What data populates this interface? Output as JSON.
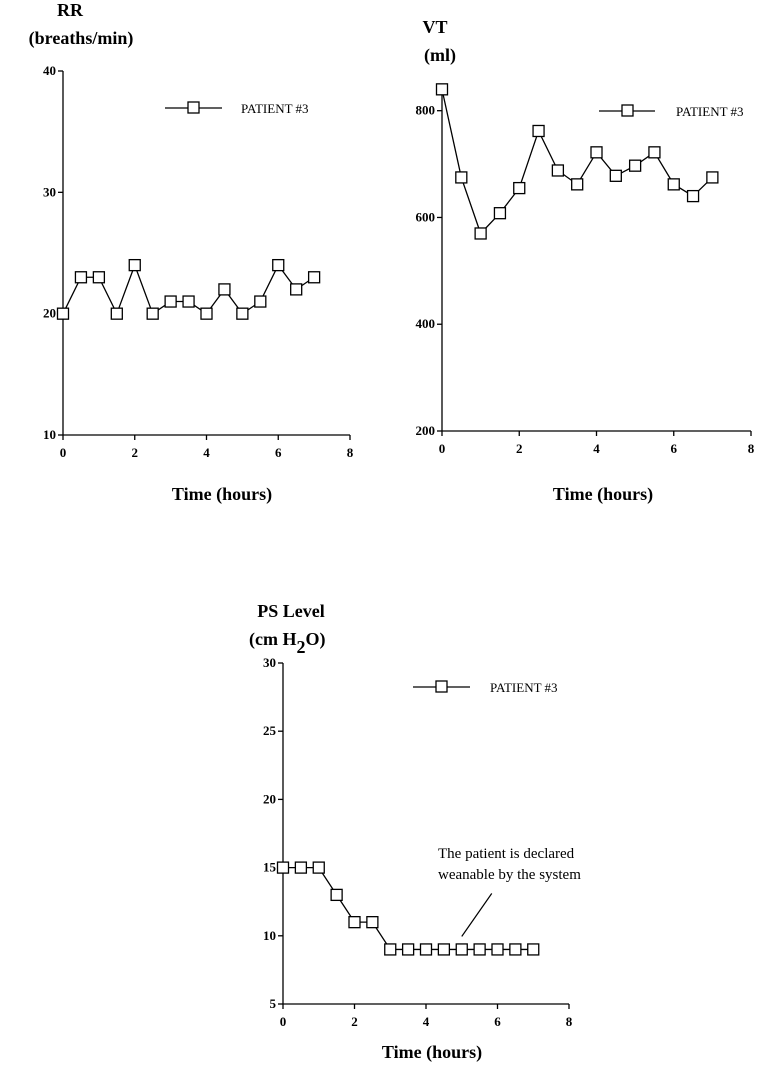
{
  "chart_data": [
    {
      "type": "line",
      "ylabel_line1": "RR",
      "ylabel_line2": "(breaths/min)",
      "xlabel": "Time (hours)",
      "xlim": [
        0,
        8
      ],
      "ylim": [
        10,
        40
      ],
      "xticks": [
        "0",
        "2",
        "4",
        "6",
        "8"
      ],
      "yticks": [
        "10",
        "20",
        "30",
        "40"
      ],
      "legend_position": "top-right",
      "series": [
        {
          "name": "PATIENT #3",
          "x": [
            0,
            0.5,
            1,
            1.5,
            2,
            2.5,
            3,
            3.5,
            4,
            4.5,
            5,
            5.5,
            6,
            6.5,
            7
          ],
          "y": [
            20,
            23,
            23,
            20,
            24,
            20,
            21,
            21,
            20,
            22,
            20,
            21,
            24,
            22,
            23
          ]
        }
      ]
    },
    {
      "type": "line",
      "ylabel_line1": "VT",
      "ylabel_line2": "(ml)",
      "xlabel": "Time (hours)",
      "xlim": [
        0,
        8
      ],
      "ylim": [
        200,
        850
      ],
      "xticks": [
        "0",
        "2",
        "4",
        "6",
        "8"
      ],
      "yticks": [
        "200",
        "400",
        "600",
        "800"
      ],
      "legend_position": "top-right",
      "series": [
        {
          "name": "PATIENT #3",
          "x": [
            0,
            0.5,
            1,
            1.5,
            2,
            2.5,
            3,
            3.5,
            4,
            4.5,
            5,
            5.5,
            6,
            6.5,
            7
          ],
          "y": [
            840,
            675,
            570,
            608,
            655,
            762,
            688,
            662,
            722,
            678,
            697,
            722,
            662,
            640,
            675
          ]
        }
      ]
    },
    {
      "type": "line",
      "ylabel_line1": "PS Level",
      "ylabel_line2": "(cm H",
      "ylabel_sub": "2",
      "ylabel_line2_end": "O)",
      "xlabel": "Time (hours)",
      "xlim": [
        0,
        8
      ],
      "ylim": [
        5,
        30
      ],
      "xticks": [
        "0",
        "2",
        "4",
        "6",
        "8"
      ],
      "yticks": [
        "5",
        "10",
        "15",
        "20",
        "25",
        "30"
      ],
      "legend_position": "top-right",
      "annotation_line1": "The patient is declared",
      "annotation_line2": "weanable by the system",
      "annotation_target": [
        5,
        9
      ],
      "series": [
        {
          "name": "PATIENT #3",
          "x": [
            0,
            0.5,
            1,
            1.5,
            2,
            2.5,
            3,
            3.5,
            4,
            4.5,
            5,
            5.5,
            6,
            6.5,
            7
          ],
          "y": [
            15,
            15,
            15,
            13,
            11,
            11,
            9,
            9,
            9,
            9,
            9,
            9,
            9,
            9,
            9
          ]
        }
      ]
    }
  ]
}
